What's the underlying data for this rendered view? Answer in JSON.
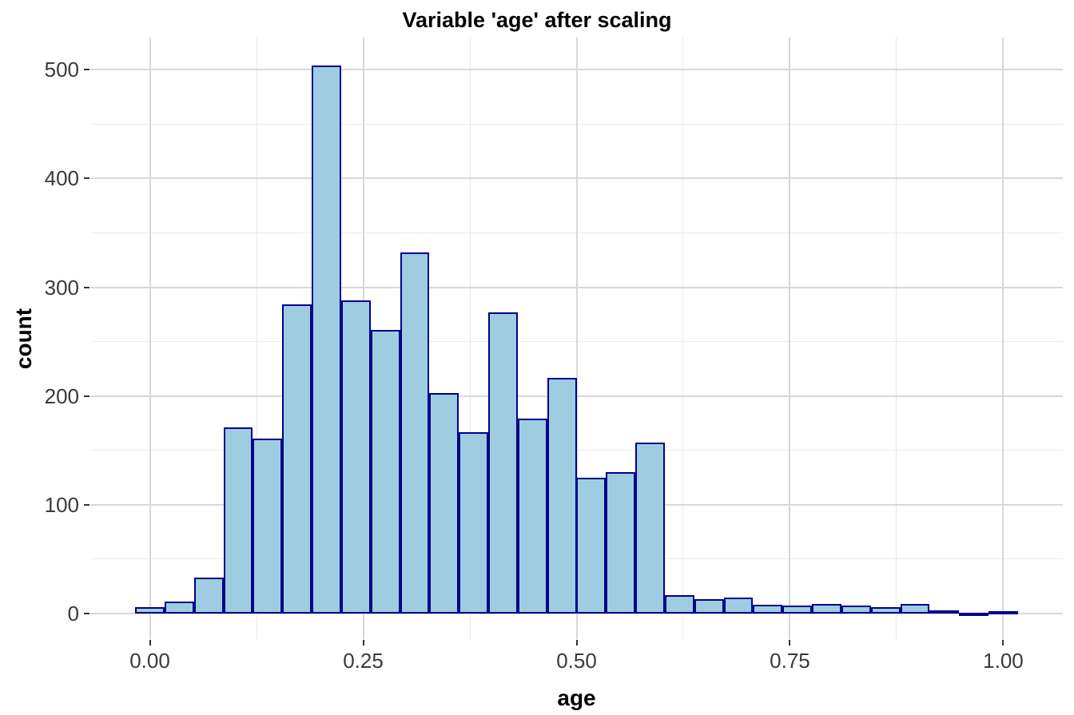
{
  "title": "Variable 'age' after scaling",
  "chart_data": {
    "type": "bar",
    "chart_kind": "histogram",
    "title": "Variable 'age' after scaling",
    "xlabel": "age",
    "ylabel": "count",
    "legend": "none",
    "grid": "on",
    "bin_width": 0.034483,
    "bin_centers": [
      0.0,
      0.0345,
      0.069,
      0.1034,
      0.1379,
      0.1724,
      0.2069,
      0.2414,
      0.2759,
      0.3103,
      0.3448,
      0.3793,
      0.4138,
      0.4483,
      0.4828,
      0.5172,
      0.5517,
      0.5862,
      0.6207,
      0.6552,
      0.6897,
      0.7241,
      0.7586,
      0.7931,
      0.8276,
      0.8621,
      0.8966,
      0.931,
      0.9655,
      1.0
    ],
    "counts": [
      6,
      11,
      33,
      171,
      161,
      284,
      504,
      288,
      261,
      332,
      203,
      167,
      277,
      179,
      217,
      125,
      130,
      157,
      17,
      13,
      15,
      8,
      7,
      9,
      7,
      6,
      9,
      3,
      1,
      2
    ],
    "x_ticks": {
      "values": [
        0,
        0.25,
        0.5,
        0.75,
        1.0
      ],
      "labels": [
        "0.00",
        "0.25",
        "0.50",
        "0.75",
        "1.00"
      ]
    },
    "y_ticks": {
      "values": [
        0,
        100,
        200,
        300,
        400,
        500
      ],
      "labels": [
        "0",
        "100",
        "200",
        "300",
        "400",
        "500"
      ]
    },
    "x_minor_gridlines": [
      0.125,
      0.375,
      0.625,
      0.875
    ],
    "y_minor_gridlines": [
      50,
      150,
      250,
      350,
      450
    ],
    "x_range": [
      -0.0698,
      1.0698
    ],
    "y_range": [
      -23.5,
      529.6
    ],
    "colors": {
      "bar_fill": "#9ECDE2",
      "bar_border": "#00008B",
      "grid_major": "#D8D8D8",
      "grid_minor": "#EBEBEB",
      "tick_mark": "#333333",
      "tick_text": "#3A3A3A",
      "title_text": "#000000"
    }
  }
}
